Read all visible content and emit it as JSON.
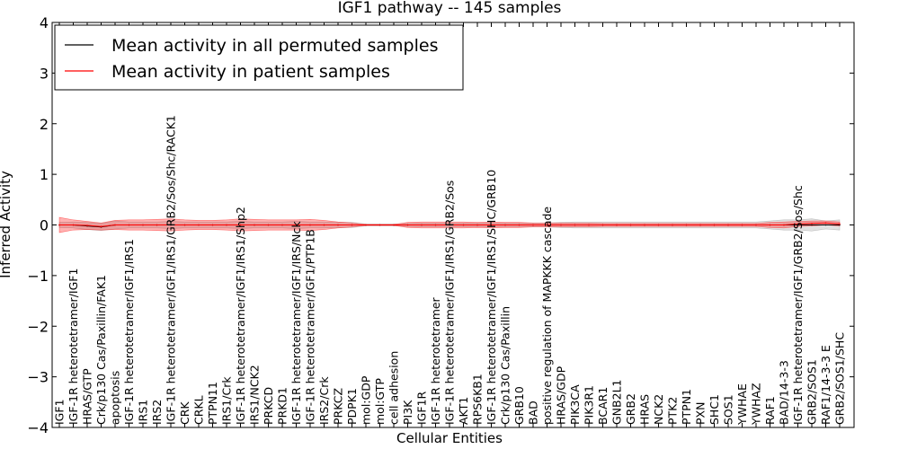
{
  "chart_data": {
    "type": "line",
    "title": "IGF1 pathway -- 145 samples",
    "xlabel": "Cellular Entities",
    "ylabel": "Inferred Activity",
    "ylim": [
      -4,
      4
    ],
    "yticks": [
      -4,
      -3,
      -2,
      -1,
      0,
      1,
      2,
      3,
      4
    ],
    "ytick_labels": [
      "−4",
      "−3",
      "−2",
      "−1",
      "0",
      "1",
      "2",
      "3",
      "4"
    ],
    "grid": false,
    "legend_position": "top-left",
    "categories": [
      "IGF1",
      "IGF-1R heterotetramer/IGF1",
      "HRAS/GTP",
      "Crk/p130 Cas/Paxillin/FAK1",
      "apoptosis",
      "IGF-1R heterotetramer/IGF1/IRS1",
      "IRS1",
      "IRS2",
      "IGF-1R heterotetramer/IGF1/IRS1/GRB2/Sos/Shc/RACK1",
      "CRK",
      "CRKL",
      "PTPN11",
      "IRS1/Crk",
      "IGF-1R heterotetramer/IGF1/IRS1/Shp2",
      "IRS1/NCK2",
      "PRKCD",
      "PRKD1",
      "IGF-1R heterotetramer/IGF1/IRS/Nck",
      "IGF-1R heterotetramer/IGF1/PTP1B",
      "IRS2/Crk",
      "PRKCZ",
      "PDPK1",
      "mol:GDP",
      "mol:GTP",
      "cell adhesion",
      "PI3K",
      "IGF1R",
      "IGF-1R heterotetramer",
      "IGF-1R heterotetramer/IGF1/IRS1/GRB2/Sos",
      "AKT1",
      "RPS6KB1",
      "IGF-1R heterotetramer/IGF1/IRS1/SHC/GRB10",
      "Crk/p130 Cas/Paxillin",
      "GRB10",
      "BAD",
      "positive regulation of MAPKKK cascade",
      "HRAS/GDP",
      "PIK3CA",
      "PIK3R1",
      "BCAR1",
      "GNB2L1",
      "GRB2",
      "HRAS",
      "NCK2",
      "PTK2",
      "PTPN1",
      "PXN",
      "SHC1",
      "SOS1",
      "YWHAE",
      "YWHAZ",
      "RAF1",
      "BAD/14-3-3",
      "IGF-1R heterotetramer/IGF1/GRB2/Sos/Shc",
      "GRB2/SOS1",
      "RAF1/14-3-3 E",
      "GRB2/SOS1/SHC"
    ],
    "series": [
      {
        "name": "Mean activity in all permuted samples",
        "color": "#000000",
        "values": [
          0.0,
          0.0,
          -0.02,
          -0.04,
          0.0,
          0.0,
          0.0,
          0.0,
          0.0,
          0.0,
          0.0,
          0.0,
          0.0,
          0.0,
          0.0,
          0.0,
          0.0,
          0.0,
          0.0,
          0.0,
          0.0,
          0.0,
          0.0,
          0.0,
          0.0,
          0.0,
          0.0,
          0.0,
          0.0,
          0.0,
          0.0,
          0.0,
          0.0,
          0.0,
          0.0,
          0.0,
          0.0,
          0.0,
          0.0,
          0.0,
          0.0,
          0.0,
          0.0,
          0.0,
          0.0,
          0.0,
          0.0,
          0.0,
          0.0,
          0.0,
          0.0,
          0.0,
          0.0,
          0.0,
          0.0,
          0.0,
          0.0
        ],
        "band": [
          0.05,
          0.06,
          0.07,
          0.07,
          0.08,
          0.06,
          0.06,
          0.06,
          0.07,
          0.06,
          0.06,
          0.06,
          0.06,
          0.07,
          0.06,
          0.06,
          0.06,
          0.07,
          0.06,
          0.06,
          0.05,
          0.05,
          0.02,
          0.02,
          0.02,
          0.03,
          0.04,
          0.04,
          0.04,
          0.04,
          0.04,
          0.04,
          0.04,
          0.04,
          0.04,
          0.04,
          0.05,
          0.06,
          0.06,
          0.06,
          0.06,
          0.06,
          0.06,
          0.06,
          0.06,
          0.06,
          0.06,
          0.06,
          0.06,
          0.06,
          0.06,
          0.08,
          0.1,
          0.1,
          0.12,
          0.08,
          0.1
        ]
      },
      {
        "name": "Mean activity in patient samples",
        "color": "#ff0000",
        "values": [
          0.0,
          0.0,
          -0.01,
          -0.03,
          0.0,
          0.0,
          0.0,
          0.0,
          0.0,
          0.0,
          0.0,
          0.0,
          0.0,
          0.0,
          0.0,
          0.0,
          0.0,
          0.0,
          0.0,
          0.0,
          0.0,
          0.0,
          0.0,
          0.0,
          0.0,
          0.0,
          0.0,
          0.0,
          0.0,
          0.0,
          0.0,
          0.0,
          0.0,
          0.0,
          0.0,
          0.0,
          0.0,
          0.0,
          0.0,
          0.0,
          0.0,
          0.0,
          0.0,
          0.0,
          0.0,
          0.0,
          0.0,
          0.0,
          0.0,
          0.0,
          0.0,
          0.0,
          0.0,
          0.02,
          0.03,
          0.04,
          0.02
        ],
        "band": [
          0.15,
          0.1,
          0.08,
          0.07,
          0.09,
          0.1,
          0.1,
          0.11,
          0.12,
          0.1,
          0.09,
          0.09,
          0.1,
          0.12,
          0.11,
          0.1,
          0.1,
          0.1,
          0.11,
          0.09,
          0.06,
          0.04,
          0.01,
          0.01,
          0.01,
          0.05,
          0.06,
          0.06,
          0.06,
          0.06,
          0.05,
          0.06,
          0.05,
          0.05,
          0.04,
          0.04,
          0.04,
          0.04,
          0.04,
          0.03,
          0.03,
          0.03,
          0.03,
          0.03,
          0.03,
          0.03,
          0.03,
          0.03,
          0.03,
          0.03,
          0.03,
          0.05,
          0.06,
          0.05,
          0.05,
          0.04,
          0.04
        ]
      }
    ]
  }
}
